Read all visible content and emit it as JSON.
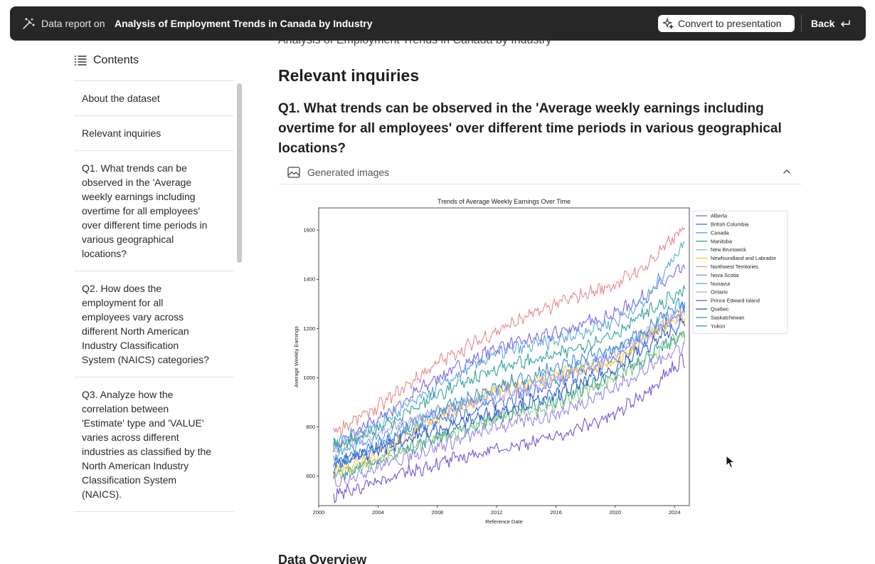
{
  "topbar": {
    "lead": "Data report on",
    "title": "Analysis of Employment Trends in Canada by Industry",
    "convert_label": "Convert to presentation",
    "back_label": "Back"
  },
  "sidebar": {
    "header": "Contents",
    "items": [
      {
        "label": "About the dataset"
      },
      {
        "label": "Relevant inquiries"
      },
      {
        "label": "Q1. What trends can be observed in the 'Average weekly earnings including overtime for all employees' over different time periods in various geographical locations?"
      },
      {
        "label": "Q2. How does the employment for all employees vary across different North American Industry Classification System (NAICS) categories?"
      },
      {
        "label": "Q3. Analyze how the correlation between 'Estimate' type and 'VALUE' varies across different industries as classified by the North American Industry Classification System (NAICS)."
      }
    ]
  },
  "main": {
    "doc_title": "Analysis of Employment Trends in Canada by Industry",
    "section_heading": "Relevant inquiries",
    "q1_heading": "Q1. What trends can be observed in the 'Average weekly earnings including overtime for all employees' over different time periods in various geographical locations?",
    "images_label": "Generated images",
    "next_heading": "Data Overview"
  },
  "chart_data": {
    "type": "line",
    "title": "Trends of Average Weekly Earnings Over Time",
    "xlabel": "Reference Date",
    "ylabel": "Average Weekly Earnings",
    "xlim": [
      2000,
      2025
    ],
    "ylim": [
      480,
      1690
    ],
    "xticks": [
      2000,
      2004,
      2008,
      2012,
      2016,
      2020,
      2024
    ],
    "yticks": [
      600,
      800,
      1000,
      1200,
      1400,
      1600
    ],
    "legend_position": "outside-right",
    "grid": false,
    "series": [
      {
        "name": "Alberta",
        "color": "#7b68ee",
        "x": [
          2001,
          2004,
          2008,
          2012,
          2016,
          2020,
          2022,
          2024.5
        ],
        "values": [
          720,
          830,
          1000,
          1120,
          1180,
          1260,
          1330,
          1440
        ]
      },
      {
        "name": "British Columbia",
        "color": "#3a6fe8",
        "x": [
          2001,
          2004,
          2008,
          2012,
          2016,
          2020,
          2022,
          2024.5
        ],
        "values": [
          650,
          720,
          820,
          900,
          970,
          1080,
          1150,
          1260
        ]
      },
      {
        "name": "Canada",
        "color": "#4aa3e8",
        "x": [
          2001,
          2004,
          2008,
          2012,
          2016,
          2020,
          2022,
          2024.5
        ],
        "values": [
          680,
          760,
          860,
          940,
          1000,
          1110,
          1180,
          1280
        ]
      },
      {
        "name": "Manitoba",
        "color": "#2a9d8f",
        "x": [
          2001,
          2004,
          2008,
          2012,
          2016,
          2020,
          2022,
          2024.5
        ],
        "values": [
          600,
          670,
          760,
          840,
          910,
          1010,
          1080,
          1170
        ]
      },
      {
        "name": "New Brunswick",
        "color": "#8bc48a",
        "x": [
          2001,
          2004,
          2008,
          2012,
          2016,
          2020,
          2022,
          2024.5
        ],
        "values": [
          600,
          660,
          750,
          830,
          890,
          1000,
          1070,
          1170
        ]
      },
      {
        "name": "Newfoundland and Labrador",
        "color": "#f4c430",
        "x": [
          2001,
          2004,
          2008,
          2012,
          2016,
          2020,
          2022,
          2024.5
        ],
        "values": [
          620,
          690,
          840,
          950,
          1010,
          1060,
          1160,
          1250
        ]
      },
      {
        "name": "Northwest Territories",
        "color": "#e88b8b",
        "x": [
          2001,
          2004,
          2008,
          2012,
          2016,
          2020,
          2022,
          2024.5
        ],
        "values": [
          780,
          880,
          1060,
          1190,
          1300,
          1380,
          1450,
          1600
        ]
      },
      {
        "name": "Nova Scotia",
        "color": "#9a86e8",
        "x": [
          2001,
          2004,
          2008,
          2012,
          2016,
          2020,
          2022,
          2024.5
        ],
        "values": [
          570,
          640,
          720,
          800,
          850,
          960,
          1030,
          1130
        ]
      },
      {
        "name": "Nunavut",
        "color": "#5fa8e0",
        "x": [
          2001,
          2004,
          2008,
          2012,
          2016,
          2020,
          2022,
          2024.5
        ],
        "values": [
          730,
          810,
          960,
          1100,
          1150,
          1230,
          1310,
          1540
        ]
      },
      {
        "name": "Ontario",
        "color": "#c9a3e0",
        "x": [
          2001,
          2004,
          2008,
          2012,
          2016,
          2020,
          2022,
          2024.5
        ],
        "values": [
          720,
          780,
          860,
          920,
          990,
          1100,
          1170,
          1270
        ]
      },
      {
        "name": "Prince Edward Island",
        "color": "#6f5ad8",
        "x": [
          2001,
          2004,
          2008,
          2012,
          2016,
          2020,
          2022,
          2024.5
        ],
        "values": [
          520,
          580,
          650,
          710,
          760,
          850,
          940,
          1070
        ]
      },
      {
        "name": "Quebec",
        "color": "#3258d6",
        "x": [
          2001,
          2004,
          2008,
          2012,
          2016,
          2020,
          2022,
          2024.5
        ],
        "values": [
          640,
          710,
          790,
          860,
          930,
          1040,
          1120,
          1220
        ]
      },
      {
        "name": "Saskatchewan",
        "color": "#3d8fd4",
        "x": [
          2001,
          2004,
          2008,
          2012,
          2016,
          2020,
          2022,
          2024.5
        ],
        "values": [
          640,
          720,
          860,
          960,
          1040,
          1120,
          1190,
          1300
        ]
      },
      {
        "name": "Yukon",
        "color": "#33a59a",
        "x": [
          2001,
          2004,
          2008,
          2012,
          2016,
          2020,
          2022,
          2024.5
        ],
        "values": [
          720,
          790,
          930,
          1040,
          1090,
          1180,
          1260,
          1350
        ]
      }
    ]
  }
}
